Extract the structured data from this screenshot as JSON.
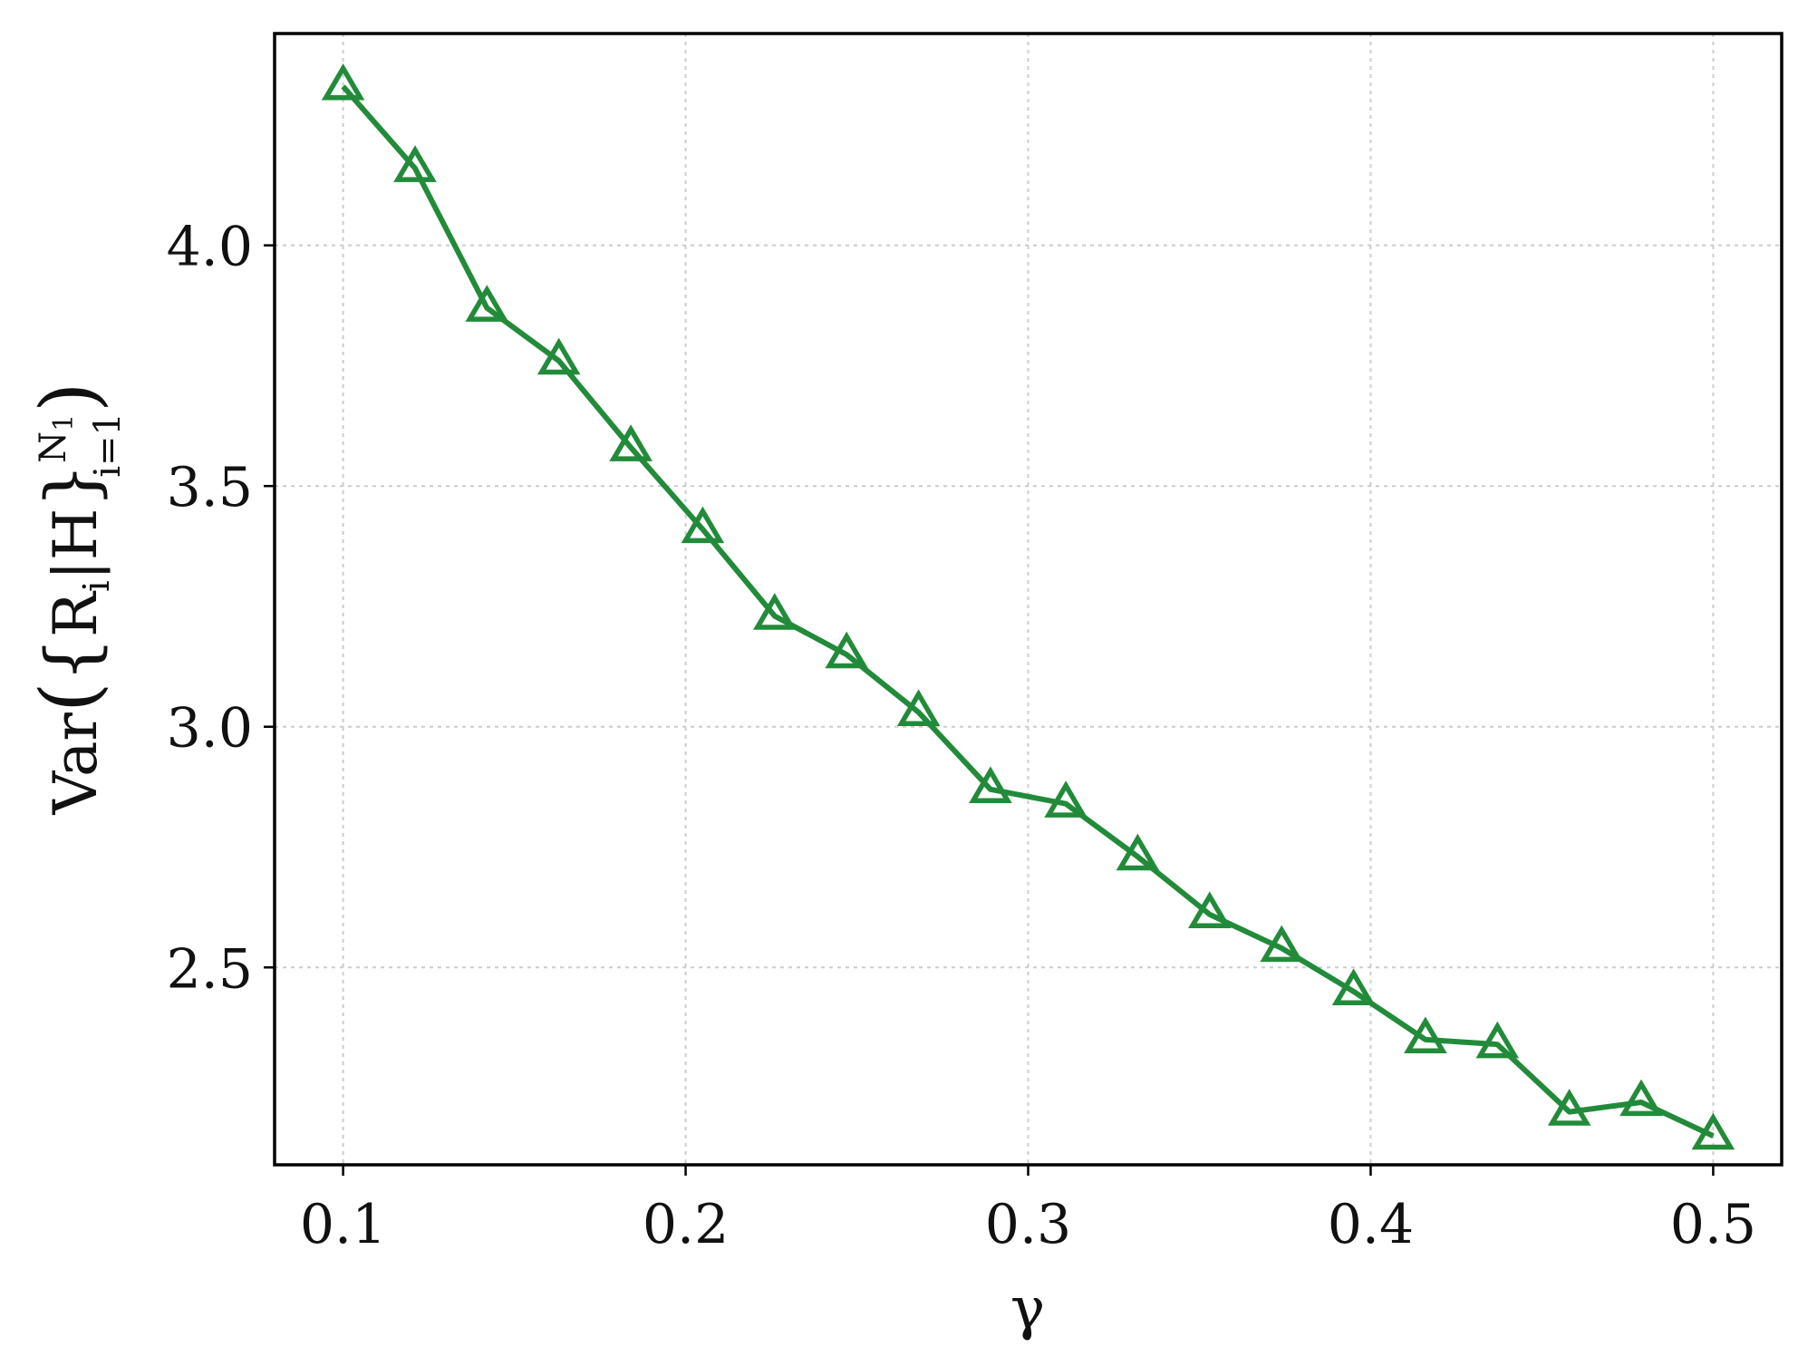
{
  "chart_data": {
    "type": "line",
    "title": "",
    "xlabel": "γ",
    "ylabel": {
      "prefix": "Var",
      "R": "R",
      "R_sub": "i",
      "mid": "|H",
      "upper": "N",
      "upper_sub": "1",
      "lower": "i=1"
    },
    "xlim": [
      0.08,
      0.52
    ],
    "ylim": [
      2.09,
      4.44
    ],
    "xticks": [
      0.1,
      0.2,
      0.3,
      0.4,
      0.5
    ],
    "xtick_labels": [
      "0.1",
      "0.2",
      "0.3",
      "0.4",
      "0.5"
    ],
    "yticks": [
      2.5,
      3.0,
      3.5,
      4.0
    ],
    "ytick_labels": [
      "2.5",
      "3.0",
      "3.5",
      "4.0"
    ],
    "grid": true,
    "series": [
      {
        "color": "#228B3A",
        "marker": "triangle-open",
        "x": [
          0.1,
          0.121,
          0.142,
          0.163,
          0.184,
          0.205,
          0.226,
          0.247,
          0.268,
          0.289,
          0.311,
          0.332,
          0.353,
          0.374,
          0.395,
          0.416,
          0.437,
          0.458,
          0.479,
          0.5
        ],
        "y": [
          4.33,
          4.16,
          3.87,
          3.76,
          3.58,
          3.41,
          3.23,
          3.15,
          3.03,
          2.87,
          2.84,
          2.73,
          2.61,
          2.54,
          2.45,
          2.35,
          2.34,
          2.2,
          2.22,
          2.15
        ]
      }
    ]
  }
}
